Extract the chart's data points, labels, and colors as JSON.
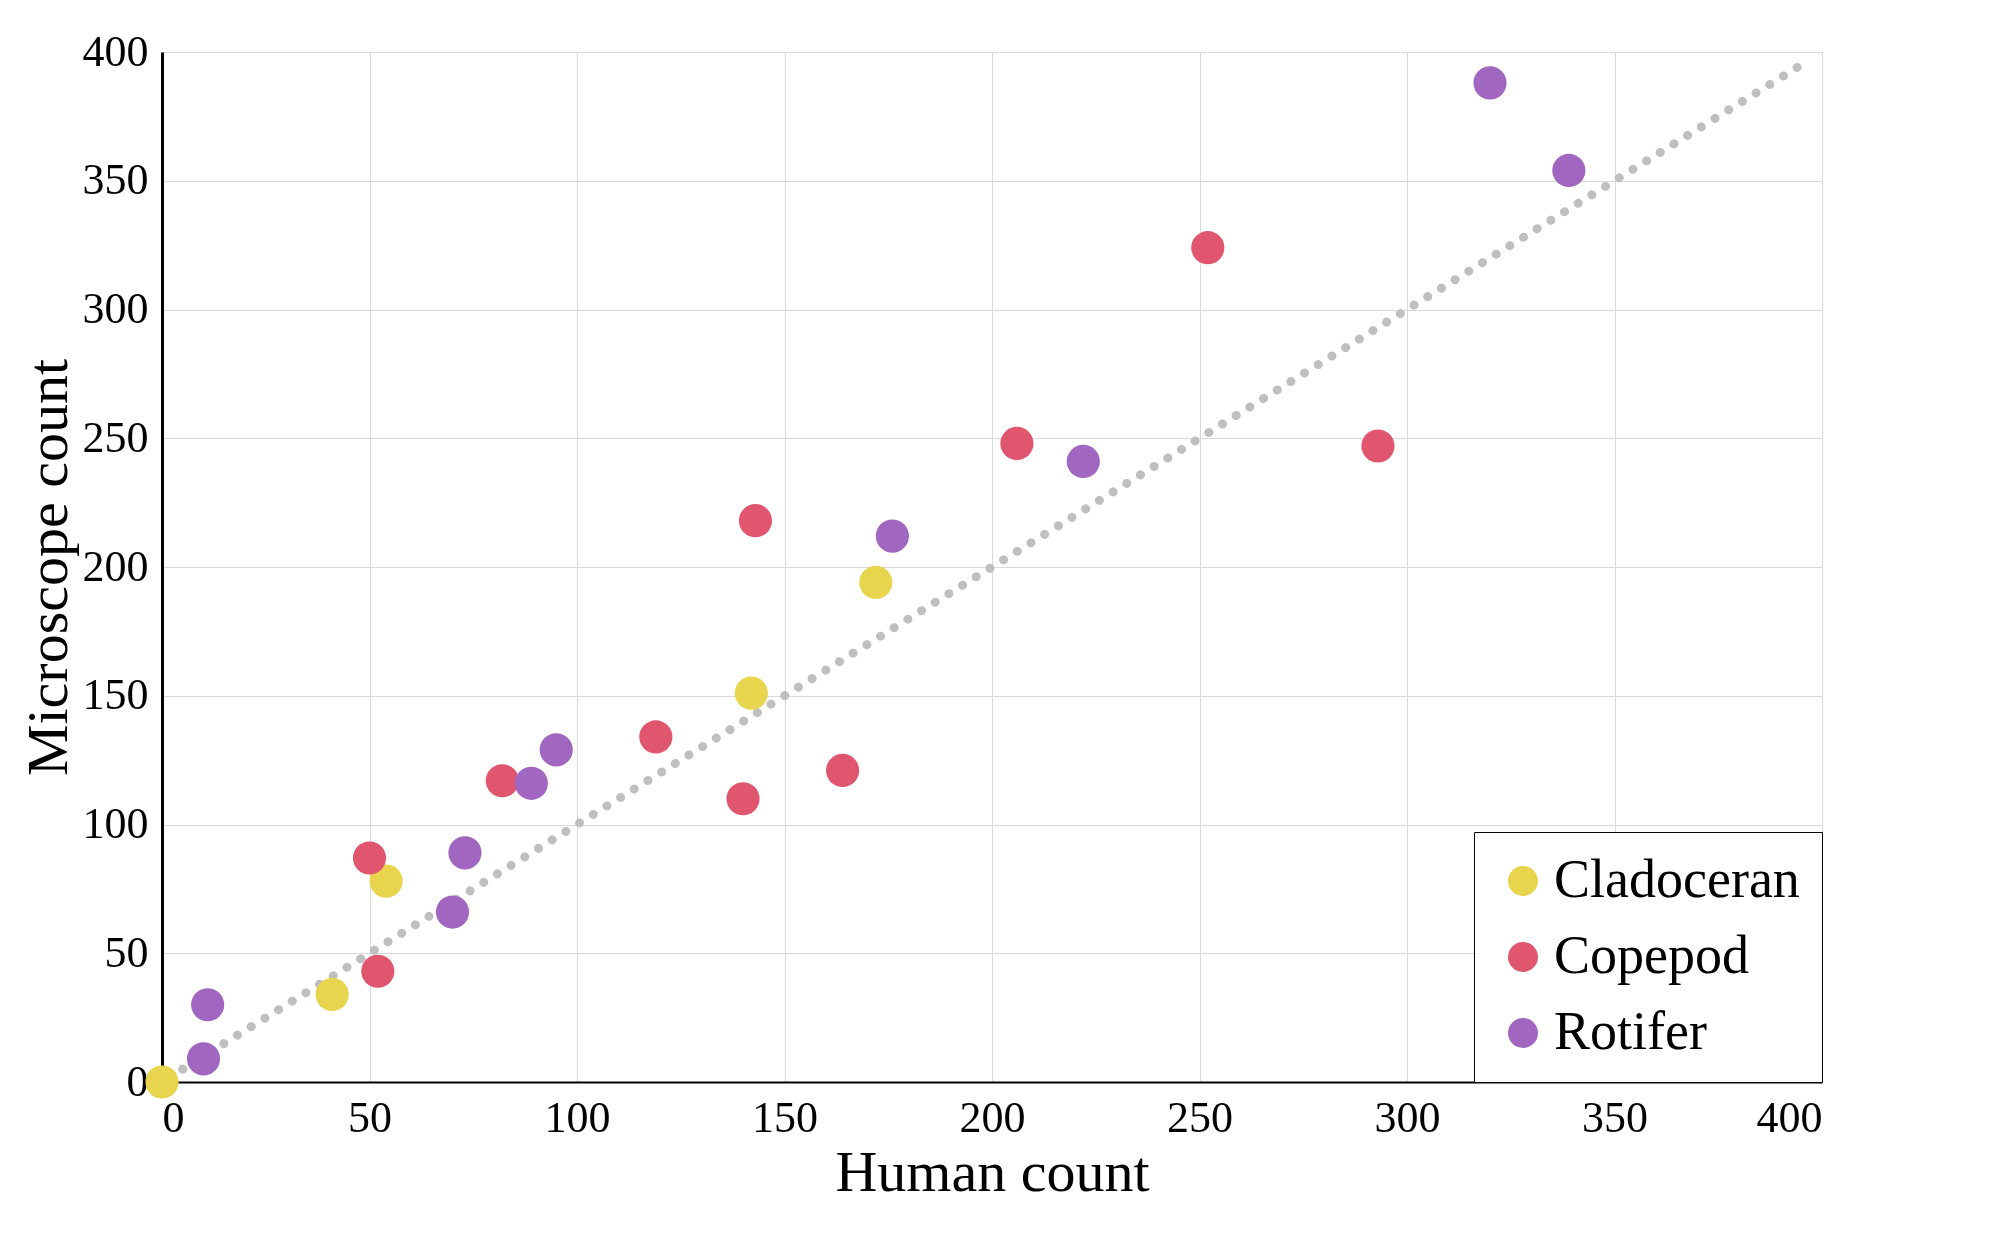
{
  "chart_data": {
    "type": "scatter",
    "xlabel": "Human count",
    "ylabel": "Microscope count",
    "xlim": [
      0,
      400
    ],
    "ylim": [
      0,
      400
    ],
    "xticks": [
      0,
      50,
      100,
      150,
      200,
      250,
      300,
      350,
      400
    ],
    "yticks": [
      0,
      50,
      100,
      150,
      200,
      250,
      300,
      350,
      400
    ],
    "grid": true,
    "legend": "bottom right",
    "marker": "circle",
    "series": [
      {
        "name": "Cladoceran",
        "color": "#e8d44d",
        "x": [
          0,
          41,
          54,
          142,
          172
        ],
        "values": [
          0,
          34,
          78,
          151,
          194
        ]
      },
      {
        "name": "Copepod",
        "color": "#e0566e",
        "x": [
          50,
          52,
          82,
          119,
          140,
          143,
          164,
          206,
          252,
          293
        ],
        "values": [
          87,
          43,
          117,
          134,
          110,
          218,
          121,
          248,
          324,
          247
        ]
      },
      {
        "name": "Rotifer",
        "color": "#a066c0",
        "x": [
          11,
          10,
          70,
          73,
          89,
          95,
          176,
          222,
          320,
          339
        ],
        "values": [
          30,
          9,
          66,
          89,
          116,
          129,
          212,
          241,
          388,
          354
        ]
      },
      {
        "type": "line",
        "color": "#bfbfbf",
        "line_style": "dotted",
        "marker": "none",
        "x": [
          5,
          395
        ],
        "values": [
          5,
          395
        ]
      }
    ]
  }
}
